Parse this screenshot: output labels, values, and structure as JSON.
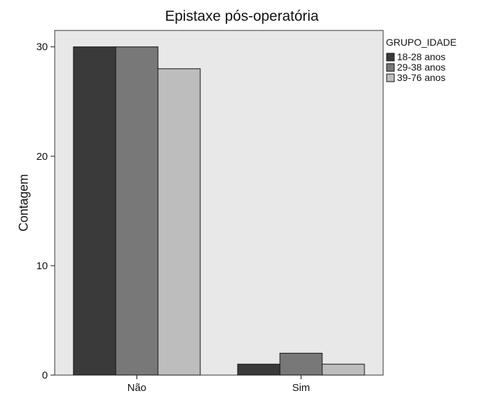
{
  "chart_data": {
    "type": "bar",
    "title": "Epistaxe pós-operatória",
    "xlabel": "",
    "ylabel": "Contagem",
    "categories": [
      "Não",
      "Sim"
    ],
    "series": [
      {
        "name": "18-28 anos",
        "values": [
          30,
          1
        ],
        "color": "#3a3a3a"
      },
      {
        "name": "29-38 anos",
        "values": [
          30,
          2
        ],
        "color": "#787878"
      },
      {
        "name": "39-76 anos",
        "values": [
          28,
          1
        ],
        "color": "#bdbdbd"
      }
    ],
    "ylim": [
      0,
      31.5
    ],
    "yticks": [
      0,
      10,
      20,
      30
    ],
    "grid": false,
    "legend": {
      "title": "GRUPO_IDADE",
      "placement": "right"
    },
    "plot_background": "#e8e8e8"
  }
}
